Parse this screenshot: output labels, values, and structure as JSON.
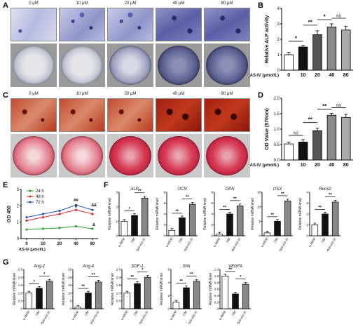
{
  "panels": {
    "A": "A",
    "B": "B",
    "C": "C",
    "D": "D",
    "E": "E",
    "F": "F",
    "G": "G"
  },
  "concentrations": [
    "0 μM",
    "10 μM",
    "20 μM",
    "40 μM",
    "80 μM"
  ],
  "chart_data": [
    {
      "id": "B",
      "type": "bar",
      "ylabel": "Relative ALP activity",
      "xlabel": "AS-IV (μmol/L)",
      "categories": [
        "0",
        "10",
        "20",
        "40",
        "80"
      ],
      "values": [
        1.0,
        1.5,
        2.3,
        2.8,
        2.6
      ],
      "errors": [
        0.15,
        0.1,
        0.25,
        0.2,
        0.25
      ],
      "ylim": [
        0,
        4
      ],
      "yticks": [
        "0",
        "1",
        "2",
        "3",
        "4"
      ],
      "colors": [
        "#ffffff",
        "#111111",
        "#555555",
        "#888888",
        "#aaaaaa"
      ],
      "sig": [
        {
          "from": 0,
          "to": 1,
          "label": "*"
        },
        {
          "from": 1,
          "to": 2,
          "label": "**"
        },
        {
          "from": 2,
          "to": 3,
          "label": "*"
        },
        {
          "from": 3,
          "to": 4,
          "label": "NS"
        }
      ]
    },
    {
      "id": "D",
      "type": "bar",
      "ylabel": "OD Value (570nm)",
      "xlabel": "AS-IV (μmol/L)",
      "categories": [
        "0",
        "10",
        "20",
        "40",
        "80"
      ],
      "values": [
        0.52,
        0.58,
        0.95,
        1.45,
        1.38
      ],
      "errors": [
        0.06,
        0.08,
        0.08,
        0.06,
        0.1
      ],
      "ylim": [
        0,
        2.0
      ],
      "yticks": [
        "0.0",
        "0.5",
        "1.0",
        "1.5",
        "2.0"
      ],
      "colors": [
        "#ffffff",
        "#111111",
        "#555555",
        "#888888",
        "#aaaaaa"
      ],
      "sig": [
        {
          "from": 0,
          "to": 1,
          "label": "NS"
        },
        {
          "from": 1,
          "to": 2,
          "label": "**"
        },
        {
          "from": 2,
          "to": 3,
          "label": "**"
        },
        {
          "from": 3,
          "to": 4,
          "label": "NS"
        }
      ]
    },
    {
      "id": "E",
      "type": "line",
      "ylabel": "OD 450",
      "xlabel": "AS-IV (μmol/L)",
      "x": [
        "0",
        "10",
        "20",
        "40",
        "80"
      ],
      "ylim": [
        0,
        3
      ],
      "yticks": [
        "0",
        "1",
        "2",
        "3"
      ],
      "series": [
        {
          "name": "24 h",
          "color": "#2ca02c",
          "values": [
            0.55,
            0.6,
            0.65,
            0.75,
            0.6
          ]
        },
        {
          "name": "48 h",
          "color": "#d62728",
          "values": [
            1.1,
            1.3,
            1.5,
            1.75,
            1.5
          ]
        },
        {
          "name": "72 h",
          "color": "#1f4fbf",
          "values": [
            1.3,
            1.5,
            1.7,
            2.05,
            1.75
          ]
        }
      ],
      "annotations": [
        "##",
        "#",
        "∆∆",
        "∆"
      ]
    }
  ],
  "qpcr_F": {
    "ylabel": "Relative mRNA level",
    "groups": [
      "α-MEM",
      "OM",
      "OM+AS-IV"
    ],
    "colors": [
      "#ffffff",
      "#111111",
      "#888888"
    ],
    "genes": [
      {
        "name": "ALP",
        "values": [
          1.0,
          1.4,
          2.6
        ],
        "ymax": 3,
        "yticks": [
          "0",
          "1",
          "2",
          "3"
        ],
        "sig": [
          "*",
          "**"
        ]
      },
      {
        "name": "OCN",
        "values": [
          1.0,
          3.3,
          5.8
        ],
        "ymax": 8,
        "yticks": [
          "0",
          "2",
          "4",
          "6",
          "8"
        ],
        "sig": [
          "**",
          "**"
        ]
      },
      {
        "name": "OPN",
        "values": [
          0.3,
          4.0,
          5.5
        ],
        "ymax": 8,
        "yticks": [
          "0",
          "2",
          "4",
          "6",
          "8"
        ],
        "sig": [
          "**",
          "**"
        ]
      },
      {
        "name": "OSX",
        "values": [
          1.0,
          5.0,
          12.0
        ],
        "ymax": 15,
        "yticks": [
          "0",
          "5",
          "10",
          "15"
        ],
        "sig": [
          "**",
          "**"
        ]
      },
      {
        "name": "Runx2",
        "values": [
          1.0,
          2.0,
          3.1
        ],
        "ymax": 4,
        "yticks": [
          "0",
          "1",
          "2",
          "3",
          "4"
        ],
        "sig": [
          "**",
          "**"
        ]
      }
    ]
  },
  "qpcr_G": {
    "ylabel": "Relative mRNA level",
    "groups": [
      "α-MEM",
      "OM",
      "OM+AS-IV"
    ],
    "colors": [
      "#ffffff",
      "#111111",
      "#888888"
    ],
    "genes": [
      {
        "name": "Ang-2",
        "values": [
          1.0,
          1.3,
          1.75
        ],
        "ymax": 2.5,
        "yticks": [
          "0",
          "0.5",
          "1.0",
          "1.5",
          "2.0",
          "2.5"
        ],
        "sig": [
          "*",
          "*"
        ]
      },
      {
        "name": "Ang-4",
        "values": [
          1.0,
          10.0,
          17.0
        ],
        "ymax": 25,
        "yticks": [
          "0",
          "5",
          "10",
          "15",
          "20",
          "25"
        ],
        "sig": [
          "**",
          "**"
        ]
      },
      {
        "name": "SDF-1",
        "values": [
          1.0,
          1.6,
          2.0
        ],
        "ymax": 2.5,
        "yticks": [
          "0",
          "0.5",
          "1.0",
          "1.5",
          "2.0",
          "2.5"
        ],
        "sig": [
          "**",
          "*"
        ]
      },
      {
        "name": "Shh",
        "values": [
          1.0,
          3.2,
          4.2
        ],
        "ymax": 6,
        "yticks": [
          "0",
          "2",
          "4",
          "6"
        ],
        "sig": [
          "**",
          "**"
        ]
      },
      {
        "name": "VEGFA",
        "values": [
          1.0,
          0.45,
          0.75
        ],
        "ymax": 1.2,
        "yticks": [
          "0",
          "0.2",
          "0.4",
          "0.6",
          "0.8",
          "1.0",
          "1.2"
        ],
        "sig": [
          "**",
          "*"
        ]
      }
    ]
  }
}
